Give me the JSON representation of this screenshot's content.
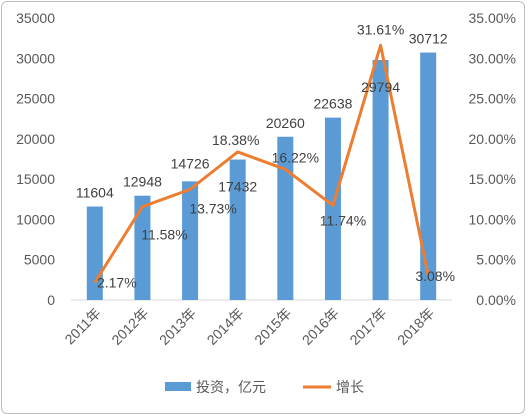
{
  "chart_data": {
    "type": "bar",
    "categories": [
      "2011年",
      "2012年",
      "2013年",
      "2014年",
      "2015年",
      "2016年",
      "2017年",
      "2018年"
    ],
    "series": [
      {
        "name": "投资，亿元",
        "type": "bar",
        "axis": "left",
        "color": "#5b9bd5",
        "values": [
          11604,
          12948,
          14726,
          17432,
          20260,
          22638,
          29794,
          30712
        ],
        "labels": [
          "11604",
          "12948",
          "14726",
          "17432",
          "20260",
          "22638",
          "29794",
          "30712"
        ]
      },
      {
        "name": "增长",
        "type": "line",
        "axis": "right",
        "color": "#ed7d31",
        "values": [
          2.17,
          11.58,
          13.73,
          18.38,
          16.22,
          11.74,
          31.61,
          3.08
        ],
        "labels": [
          "2.17%",
          "11.58%",
          "13.73%",
          "18.38%",
          "16.22%",
          "11.74%",
          "31.61%",
          "3.08%"
        ]
      }
    ],
    "y_left": {
      "ylim": [
        0,
        35000
      ],
      "ticks": [
        0,
        5000,
        10000,
        15000,
        20000,
        25000,
        30000,
        35000
      ],
      "tick_labels": [
        "0",
        "5000",
        "10000",
        "15000",
        "20000",
        "25000",
        "30000",
        "35000"
      ]
    },
    "y_right": {
      "ylim": [
        0,
        35
      ],
      "ticks": [
        0,
        5,
        10,
        15,
        20,
        25,
        30,
        35
      ],
      "tick_labels": [
        "0.00%",
        "5.00%",
        "10.00%",
        "15.00%",
        "20.00%",
        "25.00%",
        "30.00%",
        "35.00%"
      ]
    },
    "grid": false,
    "legend_position": "bottom"
  }
}
